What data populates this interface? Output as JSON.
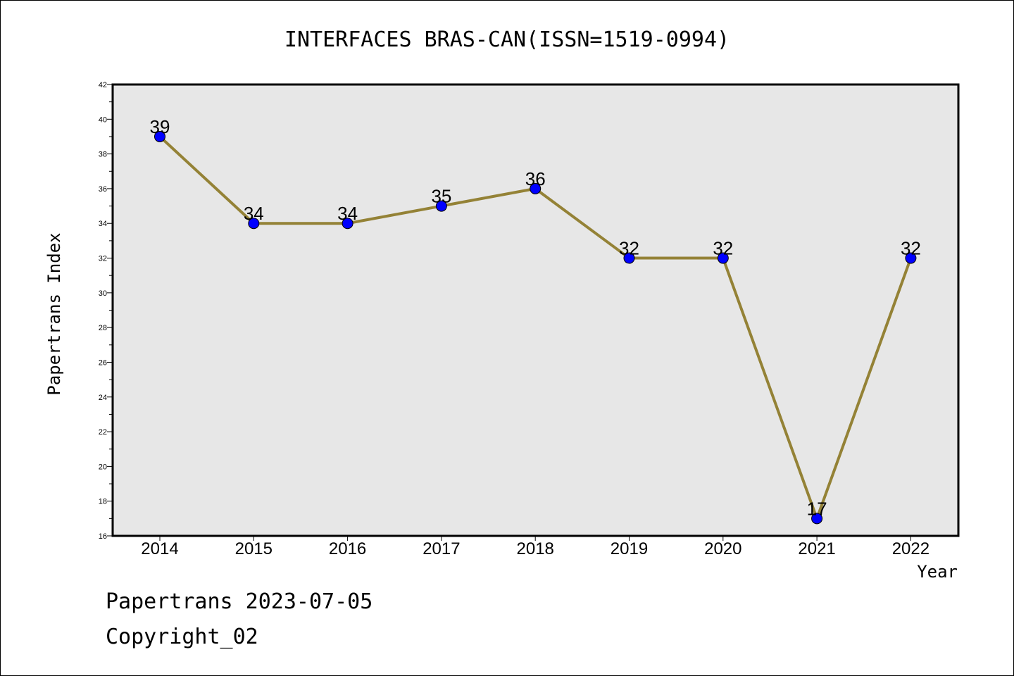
{
  "chart_data": {
    "type": "line",
    "title": "INTERFACES BRAS-CAN(ISSN=1519-0994)",
    "xlabel": "Year",
    "ylabel": "Papertrans Index",
    "x": [
      "2014",
      "2015",
      "2016",
      "2017",
      "2018",
      "2019",
      "2020",
      "2021",
      "2022"
    ],
    "values": [
      39,
      34,
      34,
      35,
      36,
      32,
      32,
      17,
      32
    ],
    "ylim": [
      16,
      42
    ],
    "yticks": [
      16,
      18,
      20,
      22,
      24,
      26,
      28,
      30,
      32,
      34,
      36,
      38,
      40,
      42
    ],
    "line_color": "#948236",
    "marker_color": "#0000ff",
    "plot_background": "#e7e7e7",
    "grid": false
  },
  "footer": {
    "line1": "Papertrans 2023-07-05",
    "line2": "Copyright_02"
  }
}
